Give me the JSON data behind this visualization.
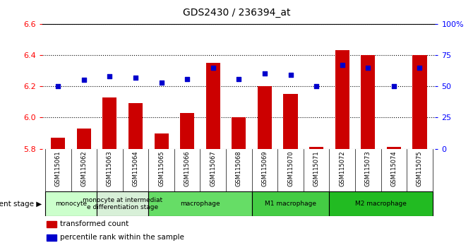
{
  "title": "GDS2430 / 236394_at",
  "samples": [
    "GSM115061",
    "GSM115062",
    "GSM115063",
    "GSM115064",
    "GSM115065",
    "GSM115066",
    "GSM115067",
    "GSM115068",
    "GSM115069",
    "GSM115070",
    "GSM115071",
    "GSM115072",
    "GSM115073",
    "GSM115074",
    "GSM115075"
  ],
  "bar_values": [
    5.87,
    5.93,
    6.13,
    6.09,
    5.9,
    6.03,
    6.35,
    6.0,
    6.2,
    6.15,
    5.81,
    6.43,
    6.4,
    5.81,
    6.4
  ],
  "percentile_values": [
    50,
    55,
    58,
    57,
    53,
    56,
    65,
    56,
    60,
    59,
    50,
    67,
    65,
    50,
    65
  ],
  "ylim": [
    5.8,
    6.6
  ],
  "yticks_left": [
    5.8,
    6.0,
    6.2,
    6.4,
    6.6
  ],
  "yticks_right": [
    0,
    25,
    50,
    75,
    100
  ],
  "bar_color": "#cc0000",
  "dot_color": "#0000cc",
  "bar_base": 5.8,
  "groups": [
    {
      "label": "monocyte",
      "start": 0,
      "end": 2,
      "color": "#ccffcc"
    },
    {
      "label": "monocyte at intermediat\ne differentiation stage",
      "start": 2,
      "end": 4,
      "color": "#d8f0d8"
    },
    {
      "label": "macrophage",
      "start": 4,
      "end": 8,
      "color": "#66dd66"
    },
    {
      "label": "M1 macrophage",
      "start": 8,
      "end": 11,
      "color": "#44cc44"
    },
    {
      "label": "M2 macrophage",
      "start": 11,
      "end": 15,
      "color": "#22bb22"
    }
  ],
  "dev_stage_label": "development stage",
  "legend_items": [
    {
      "label": "transformed count",
      "color": "#cc0000"
    },
    {
      "label": "percentile rank within the sample",
      "color": "#0000cc"
    }
  ]
}
